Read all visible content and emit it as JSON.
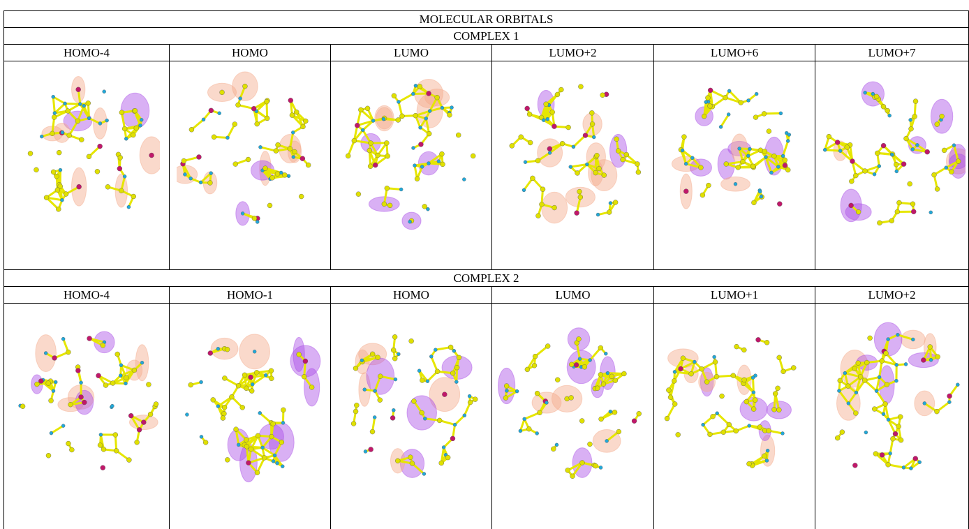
{
  "table": {
    "title": "MOLECULAR ORBITALS",
    "sections": [
      {
        "title": "COMPLEX 1",
        "columns": [
          "HOMO-4",
          "HOMO",
          "LUMO",
          "LUMO+2",
          "LUMO+6",
          "LUMO+7"
        ]
      },
      {
        "title": "COMPLEX 2",
        "columns": [
          "HOMO-4",
          "HOMO-1",
          "HOMO",
          "LUMO",
          "LUMO+1",
          "LUMO+2"
        ]
      }
    ]
  }
}
